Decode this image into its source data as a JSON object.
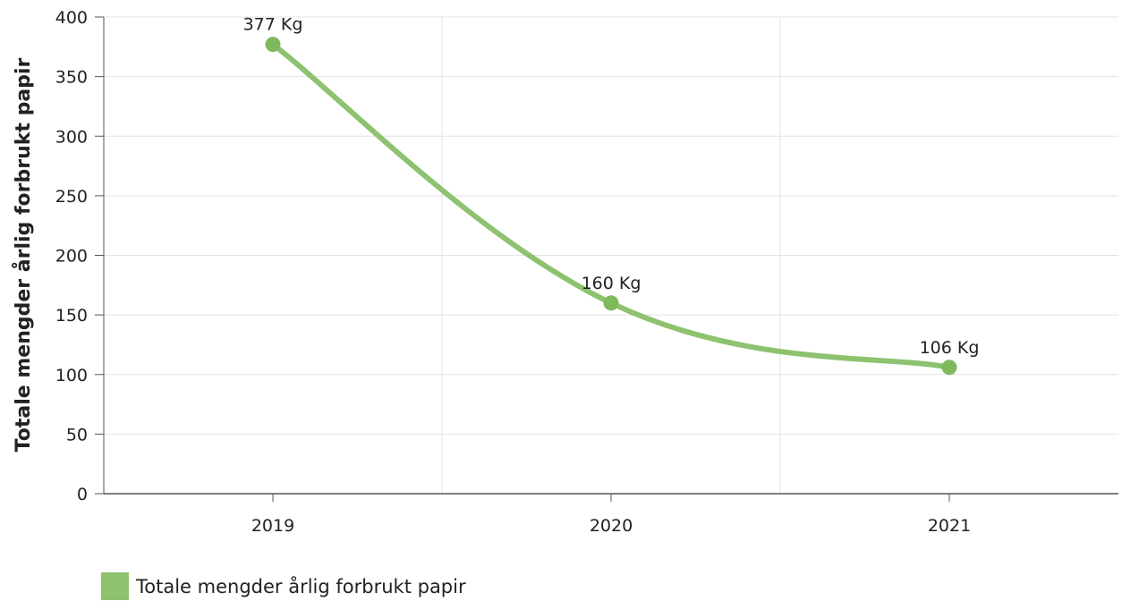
{
  "chart_data": {
    "type": "line",
    "title": "",
    "xlabel": "",
    "ylabel": "Totale mengder årlig forbrukt papir",
    "categories": [
      "2019",
      "2020",
      "2021"
    ],
    "series": [
      {
        "name": "Totale mengder årlig forbrukt papir",
        "values": [
          377,
          160,
          106
        ],
        "data_labels": [
          "377 Kg",
          "160 Kg",
          "106 Kg"
        ],
        "color": "#8dc26f"
      }
    ],
    "ylim": [
      0,
      400
    ],
    "yticks": [
      "0",
      "50",
      "100",
      "150",
      "200",
      "250",
      "300",
      "350",
      "400"
    ],
    "grid": true,
    "legend_position": "bottom-left",
    "line_style": "smooth"
  }
}
